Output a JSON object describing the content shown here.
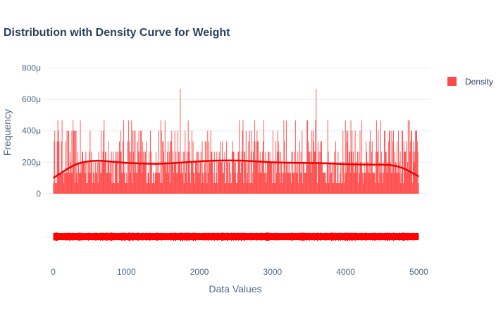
{
  "chart_data": {
    "type": "bar",
    "title": "Distribution with Density Curve for Weight",
    "xlabel": "Data Values",
    "ylabel": "Frequency",
    "xlim": [
      -150,
      5150
    ],
    "ylim": [
      0,
      820
    ],
    "x_ticks": [
      0,
      1000,
      2000,
      3000,
      4000,
      5000
    ],
    "y_ticks": [
      0,
      200,
      400,
      600,
      800
    ],
    "y_tick_labels": [
      "0",
      "200μ",
      "400μ",
      "600μ",
      "800μ"
    ],
    "grid": true,
    "legend": {
      "position": "top-right",
      "entries": [
        "Density"
      ]
    },
    "colors": {
      "histogram": "#ff4b4b",
      "curve": "#ee0000",
      "rug": "#ff0000",
      "grid": "#e8ecf2"
    },
    "histogram": {
      "name": "Density",
      "bin_start": 0,
      "bin_end": 5000,
      "bin_count": 600,
      "value_levels": [
        67,
        133,
        200,
        267,
        333,
        400,
        467,
        667
      ],
      "peaks": [
        {
          "x": 1735,
          "value": 667
        },
        {
          "x": 3600,
          "value": 667
        },
        {
          "x": 60,
          "value": 467
        },
        {
          "x": 1030,
          "value": 467
        },
        {
          "x": 1070,
          "value": 467
        },
        {
          "x": 1530,
          "value": 467
        },
        {
          "x": 2755,
          "value": 467
        },
        {
          "x": 3185,
          "value": 467
        },
        {
          "x": 3480,
          "value": 467
        },
        {
          "x": 4420,
          "value": 467
        },
        {
          "x": 4480,
          "value": 467
        },
        {
          "x": 4870,
          "value": 467
        }
      ]
    },
    "density_curve": {
      "x": [
        0,
        100,
        200,
        300,
        400,
        500,
        600,
        700,
        800,
        900,
        1000,
        1200,
        1400,
        1600,
        1800,
        2000,
        2200,
        2400,
        2600,
        2800,
        3000,
        3200,
        3400,
        3600,
        3800,
        4000,
        4200,
        4400,
        4500,
        4600,
        4700,
        4800,
        4900,
        5000
      ],
      "y": [
        100,
        130,
        160,
        185,
        200,
        207,
        210,
        208,
        204,
        200,
        196,
        192,
        190,
        193,
        200,
        206,
        210,
        212,
        210,
        205,
        200,
        197,
        196,
        195,
        192,
        188,
        186,
        185,
        185,
        183,
        175,
        160,
        135,
        110
      ]
    },
    "rug": {
      "x_range": [
        0,
        5000
      ]
    }
  }
}
